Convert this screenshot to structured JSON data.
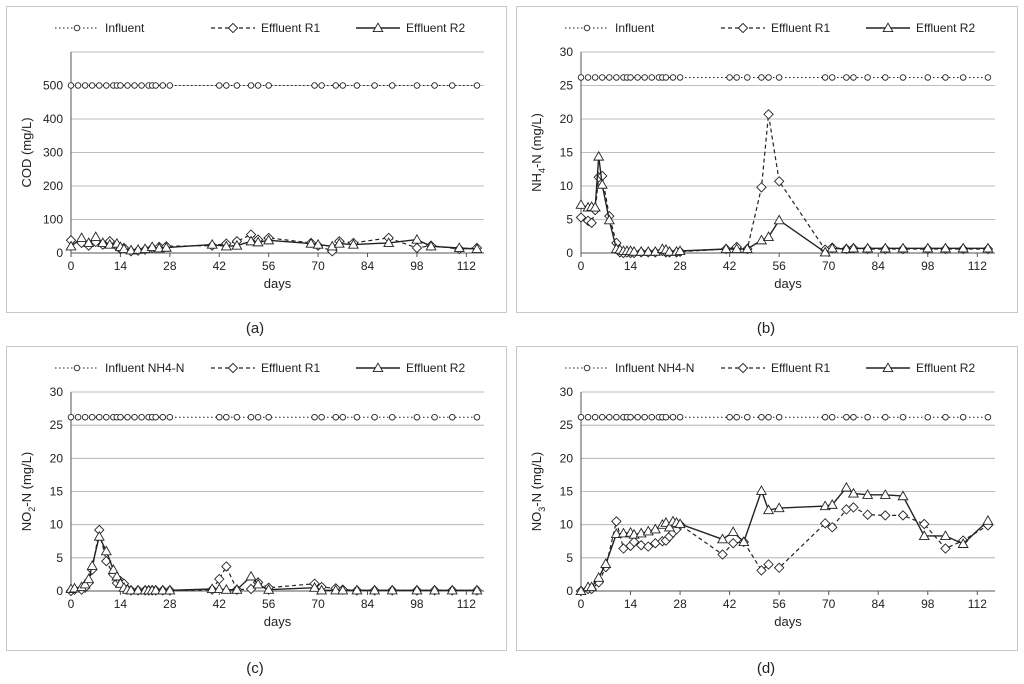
{
  "chart_data": [
    {
      "type": "line",
      "caption": "(a)",
      "xlabel": "days",
      "ylabel": "COD (mg/L)",
      "ylabel_main": "COD (mg/L)",
      "ylabel_sub": "",
      "ylabel_tail": "",
      "xlim": [
        0,
        117
      ],
      "ylim": [
        0,
        600
      ],
      "xticks": [
        0,
        14,
        28,
        42,
        56,
        70,
        84,
        98,
        112
      ],
      "xtick_labels": [
        "0",
        "14",
        "28",
        "42",
        "56",
        "70",
        "84",
        "98",
        "112"
      ],
      "yticks": [
        0,
        100,
        200,
        300,
        400,
        500
      ],
      "ytick_labels": [
        "0",
        "100",
        "200",
        "300",
        "400",
        "500"
      ],
      "legend": [
        "Influent",
        "Effluent R1",
        "Effluent R2"
      ],
      "series": [
        {
          "name": "Influent",
          "x": [
            0,
            2,
            4,
            6,
            8,
            10,
            12,
            13,
            14,
            16,
            18,
            20,
            22,
            23,
            24,
            26,
            28,
            42,
            44,
            47,
            51,
            53,
            56,
            69,
            71,
            75,
            77,
            81,
            86,
            91,
            98,
            103,
            108,
            115
          ],
          "values": [
            500,
            500,
            500,
            500,
            500,
            500,
            500,
            500,
            500,
            500,
            500,
            500,
            500,
            500,
            500,
            500,
            500,
            500,
            500,
            500,
            500,
            500,
            500,
            500,
            500,
            500,
            500,
            500,
            500,
            500,
            500,
            500,
            500,
            500
          ]
        },
        {
          "name": "Effluent R1",
          "x": [
            0,
            3,
            5,
            7,
            9,
            11,
            13,
            14,
            15,
            17,
            19,
            21,
            23,
            25,
            27,
            40,
            44,
            47,
            51,
            53,
            56,
            68,
            70,
            74,
            76,
            80,
            90,
            98,
            102,
            110,
            115
          ],
          "values": [
            38,
            30,
            22,
            33,
            25,
            35,
            20,
            12,
            15,
            5,
            7,
            10,
            15,
            18,
            20,
            22,
            28,
            35,
            55,
            40,
            45,
            30,
            22,
            5,
            35,
            30,
            45,
            15,
            22,
            12,
            15
          ]
        },
        {
          "name": "Effluent R2",
          "x": [
            0,
            3,
            5,
            7,
            9,
            11,
            13,
            14,
            15,
            17,
            19,
            21,
            23,
            25,
            27,
            40,
            44,
            47,
            51,
            53,
            56,
            68,
            70,
            74,
            76,
            80,
            90,
            98,
            102,
            110,
            115
          ],
          "values": [
            20,
            45,
            30,
            48,
            30,
            25,
            28,
            18,
            12,
            8,
            10,
            12,
            18,
            14,
            16,
            25,
            20,
            22,
            35,
            32,
            38,
            28,
            25,
            20,
            28,
            25,
            30,
            40,
            20,
            15,
            12
          ]
        }
      ]
    },
    {
      "type": "line",
      "caption": "(b)",
      "xlabel": "days",
      "ylabel": "NH4-N (mg/L)",
      "ylabel_main": "NH",
      "ylabel_sub": "4",
      "ylabel_tail": "-N (mg/L)",
      "xlim": [
        0,
        117
      ],
      "ylim": [
        0,
        30
      ],
      "xticks": [
        0,
        14,
        28,
        42,
        56,
        70,
        84,
        98,
        112
      ],
      "xtick_labels": [
        "0",
        "14",
        "28",
        "42",
        "56",
        "70",
        "84",
        "98",
        "112"
      ],
      "yticks": [
        0,
        5,
        10,
        15,
        20,
        25,
        30
      ],
      "ytick_labels": [
        "0",
        "5",
        "10",
        "15",
        "20",
        "25",
        "30"
      ],
      "legend": [
        "Influent",
        "Effluent R1",
        "Effluent R2"
      ],
      "series": [
        {
          "name": "Influent",
          "x": [
            0,
            2,
            4,
            6,
            8,
            10,
            12,
            13,
            14,
            16,
            18,
            20,
            22,
            23,
            24,
            26,
            28,
            42,
            44,
            47,
            51,
            53,
            56,
            69,
            71,
            75,
            77,
            81,
            86,
            91,
            98,
            103,
            108,
            115
          ],
          "values": [
            26.2,
            26.2,
            26.2,
            26.2,
            26.2,
            26.2,
            26.2,
            26.2,
            26.2,
            26.2,
            26.2,
            26.2,
            26.2,
            26.2,
            26.2,
            26.2,
            26.2,
            26.2,
            26.2,
            26.2,
            26.2,
            26.2,
            26.2,
            26.2,
            26.2,
            26.2,
            26.2,
            26.2,
            26.2,
            26.2,
            26.2,
            26.2,
            26.2,
            26.2
          ]
        },
        {
          "name": "Effluent R1",
          "x": [
            0,
            2,
            3,
            4,
            5,
            6,
            8,
            10,
            11,
            12,
            13,
            14,
            15,
            17,
            19,
            21,
            23,
            24,
            25,
            27,
            28,
            41,
            44,
            47,
            51,
            53,
            56,
            69,
            71,
            75,
            77,
            81,
            86,
            91,
            98,
            103,
            108,
            115
          ],
          "values": [
            5.3,
            4.8,
            4.5,
            6.4,
            11.3,
            11.5,
            5.5,
            1.5,
            0.1,
            0,
            0.1,
            0,
            0,
            0.1,
            0.1,
            0.1,
            0.3,
            0.1,
            0.1,
            0.1,
            0.2,
            0.6,
            0.9,
            0.6,
            9.8,
            20.7,
            10.7,
            0.5,
            0.8,
            0.6,
            0.7,
            0.6,
            0.6,
            0.6,
            0.6,
            0.6,
            0.6,
            0.6
          ]
        },
        {
          "name": "Effluent R2",
          "x": [
            0,
            2,
            3,
            4,
            5,
            6,
            8,
            10,
            11,
            12,
            13,
            14,
            15,
            17,
            19,
            21,
            23,
            24,
            25,
            27,
            28,
            41,
            44,
            47,
            51,
            53,
            56,
            69,
            71,
            75,
            77,
            81,
            86,
            91,
            98,
            103,
            108,
            115
          ],
          "values": [
            7.2,
            6.8,
            6.9,
            6.8,
            14.4,
            10.2,
            4.9,
            0.6,
            0.5,
            0.3,
            0.3,
            0.3,
            0.2,
            0.2,
            0.2,
            0.2,
            0.6,
            0.5,
            0.2,
            0.2,
            0.3,
            0.6,
            0.6,
            0.6,
            1.9,
            2.4,
            4.9,
            0.1,
            0.7,
            0.6,
            0.7,
            0.7,
            0.7,
            0.7,
            0.7,
            0.7,
            0.7,
            0.7
          ]
        }
      ]
    },
    {
      "type": "line",
      "caption": "(c)",
      "xlabel": "days",
      "ylabel": "NO2-N (mg/L)",
      "ylabel_main": "NO",
      "ylabel_sub": "2",
      "ylabel_tail": "-N (mg/L)",
      "xlim": [
        0,
        117
      ],
      "ylim": [
        0,
        30
      ],
      "xticks": [
        0,
        14,
        28,
        42,
        56,
        70,
        84,
        98,
        112
      ],
      "xtick_labels": [
        "0",
        "14",
        "28",
        "42",
        "56",
        "70",
        "84",
        "98",
        "112"
      ],
      "yticks": [
        0,
        5,
        10,
        15,
        20,
        25,
        30
      ],
      "ytick_labels": [
        "0",
        "5",
        "10",
        "15",
        "20",
        "25",
        "30"
      ],
      "legend": [
        "Influent NH4-N",
        "Effluent R1",
        "Effluent R2"
      ],
      "series": [
        {
          "name": "Influent NH4-N",
          "x": [
            0,
            2,
            4,
            6,
            8,
            10,
            12,
            13,
            14,
            16,
            18,
            20,
            22,
            23,
            24,
            26,
            28,
            42,
            44,
            47,
            51,
            53,
            56,
            69,
            71,
            75,
            77,
            81,
            86,
            91,
            98,
            103,
            108,
            115
          ],
          "values": [
            26.2,
            26.2,
            26.2,
            26.2,
            26.2,
            26.2,
            26.2,
            26.2,
            26.2,
            26.2,
            26.2,
            26.2,
            26.2,
            26.2,
            26.2,
            26.2,
            26.2,
            26.2,
            26.2,
            26.2,
            26.2,
            26.2,
            26.2,
            26.2,
            26.2,
            26.2,
            26.2,
            26.2,
            26.2,
            26.2,
            26.2,
            26.2,
            26.2,
            26.2
          ]
        },
        {
          "name": "Effluent R1",
          "x": [
            0,
            1,
            3,
            4,
            5,
            6,
            8,
            10,
            12,
            13,
            14,
            15,
            16,
            17,
            19,
            21,
            22,
            23,
            24,
            26,
            28,
            40,
            42,
            44,
            47,
            51,
            53,
            56,
            69,
            71,
            75,
            77,
            81,
            86,
            91,
            98,
            103,
            108,
            115
          ],
          "values": [
            0,
            0.2,
            0.2,
            0.5,
            1.2,
            3.2,
            9.2,
            4.5,
            2.5,
            1.2,
            1.5,
            1.1,
            0.2,
            0.1,
            0.1,
            0.1,
            0.1,
            0.1,
            0.1,
            0.1,
            0.1,
            0.2,
            1.8,
            3.7,
            0.2,
            0.3,
            1.3,
            0.5,
            1.1,
            0.6,
            0.4,
            0.2,
            0.1,
            0.1,
            0.1,
            0.1,
            0.1,
            0.1,
            0.1
          ]
        },
        {
          "name": "Effluent R2",
          "x": [
            0,
            1,
            3,
            4,
            5,
            6,
            8,
            10,
            12,
            13,
            14,
            15,
            16,
            17,
            19,
            21,
            22,
            23,
            24,
            26,
            28,
            40,
            42,
            44,
            47,
            51,
            53,
            56,
            69,
            71,
            75,
            77,
            81,
            86,
            91,
            98,
            103,
            108,
            115
          ],
          "values": [
            0.3,
            0.4,
            0.6,
            1,
            1.8,
            3.8,
            8.2,
            6,
            3.2,
            2.2,
            1.1,
            0.5,
            0.2,
            0.1,
            0.1,
            0.1,
            0.1,
            0.1,
            0.1,
            0.1,
            0.1,
            0.3,
            0.3,
            0.2,
            0.2,
            2.2,
            1,
            0.2,
            0.5,
            0.1,
            0.1,
            0.1,
            0.1,
            0.1,
            0.1,
            0.1,
            0.1,
            0.1,
            0.1
          ]
        }
      ]
    },
    {
      "type": "line",
      "caption": "(d)",
      "xlabel": "days",
      "ylabel": "NO3-N (mg/L)",
      "ylabel_main": "NO",
      "ylabel_sub": "3",
      "ylabel_tail": "-N (mg/L)",
      "xlim": [
        0,
        117
      ],
      "ylim": [
        0,
        30
      ],
      "xticks": [
        0,
        14,
        28,
        42,
        56,
        70,
        84,
        98,
        112
      ],
      "xtick_labels": [
        "0",
        "14",
        "28",
        "42",
        "56",
        "70",
        "84",
        "98",
        "112"
      ],
      "yticks": [
        0,
        5,
        10,
        15,
        20,
        25,
        30
      ],
      "ytick_labels": [
        "0",
        "5",
        "10",
        "15",
        "20",
        "25",
        "30"
      ],
      "legend": [
        "Influent NH4-N",
        "Effluent R1",
        "Effluent R2"
      ],
      "series": [
        {
          "name": "Influent NH4-N",
          "x": [
            0,
            2,
            4,
            6,
            8,
            10,
            12,
            13,
            14,
            16,
            18,
            20,
            22,
            23,
            24,
            26,
            28,
            42,
            44,
            47,
            51,
            53,
            56,
            69,
            71,
            75,
            77,
            81,
            86,
            91,
            98,
            103,
            108,
            115
          ],
          "values": [
            26.2,
            26.2,
            26.2,
            26.2,
            26.2,
            26.2,
            26.2,
            26.2,
            26.2,
            26.2,
            26.2,
            26.2,
            26.2,
            26.2,
            26.2,
            26.2,
            26.2,
            26.2,
            26.2,
            26.2,
            26.2,
            26.2,
            26.2,
            26.2,
            26.2,
            26.2,
            26.2,
            26.2,
            26.2,
            26.2,
            26.2,
            26.2,
            26.2,
            26.2
          ]
        },
        {
          "name": "Effluent R1",
          "x": [
            0,
            2,
            3,
            5,
            7,
            10,
            12,
            14,
            15,
            17,
            19,
            21,
            23,
            24,
            25,
            26,
            27,
            28,
            40,
            43,
            46,
            51,
            53,
            56,
            69,
            71,
            75,
            77,
            81,
            86,
            91,
            97,
            103,
            108,
            115
          ],
          "values": [
            0,
            0.3,
            0.3,
            1.3,
            3.6,
            10.5,
            6.4,
            6.8,
            7.4,
            6.9,
            6.7,
            7.2,
            7.5,
            7.6,
            8.2,
            8.8,
            9.3,
            10,
            5.5,
            7.2,
            7.4,
            3.1,
            4,
            3.5,
            10.2,
            9.6,
            12.3,
            12.6,
            11.5,
            11.4,
            11.4,
            10.1,
            6.4,
            7.6,
            9.9
          ]
        },
        {
          "name": "Effluent R2",
          "x": [
            0,
            2,
            3,
            5,
            7,
            10,
            12,
            14,
            15,
            17,
            19,
            21,
            23,
            24,
            25,
            26,
            27,
            28,
            40,
            43,
            46,
            51,
            53,
            56,
            69,
            71,
            75,
            77,
            81,
            86,
            91,
            97,
            103,
            108,
            115
          ],
          "values": [
            0,
            0.6,
            0.6,
            2,
            4.1,
            8.6,
            8.7,
            8.8,
            8.5,
            8.7,
            9,
            9.3,
            10,
            10.3,
            9.6,
            10.5,
            10.3,
            10.1,
            7.8,
            8.9,
            7.4,
            15.1,
            12.2,
            12.5,
            12.8,
            13,
            15.6,
            14.7,
            14.5,
            14.5,
            14.3,
            8.3,
            8.3,
            7.1,
            10.6
          ]
        }
      ]
    }
  ]
}
